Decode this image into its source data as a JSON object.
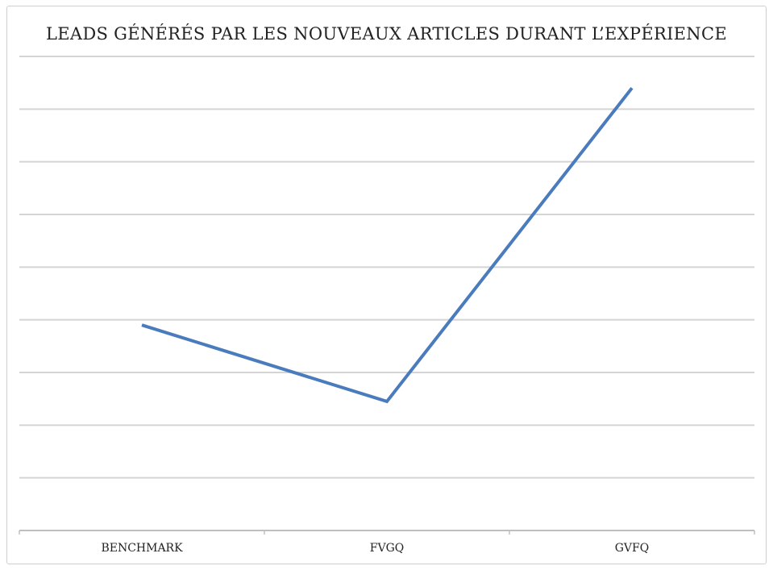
{
  "chart_data": {
    "type": "line",
    "title": "LEADS GÉNÉRÉS PAR LES NOUVEAUX ARTICLES DURANT L’EXPÉRIENCE",
    "xlabel": "",
    "ylabel": "",
    "categories": [
      "BENCHMARK",
      "FVGQ",
      "GVFQ"
    ],
    "series": [
      {
        "values": [
          3.9,
          2.45,
          8.4
        ]
      }
    ],
    "ylim": [
      0,
      9
    ],
    "y_tick_labels_shown": false,
    "grid": true,
    "legend": "none",
    "colors": {
      "line": "#4a7cbd",
      "grid": "#d4d4d4",
      "axis": "#bfbfbf",
      "border": "#cfcfcf"
    }
  }
}
